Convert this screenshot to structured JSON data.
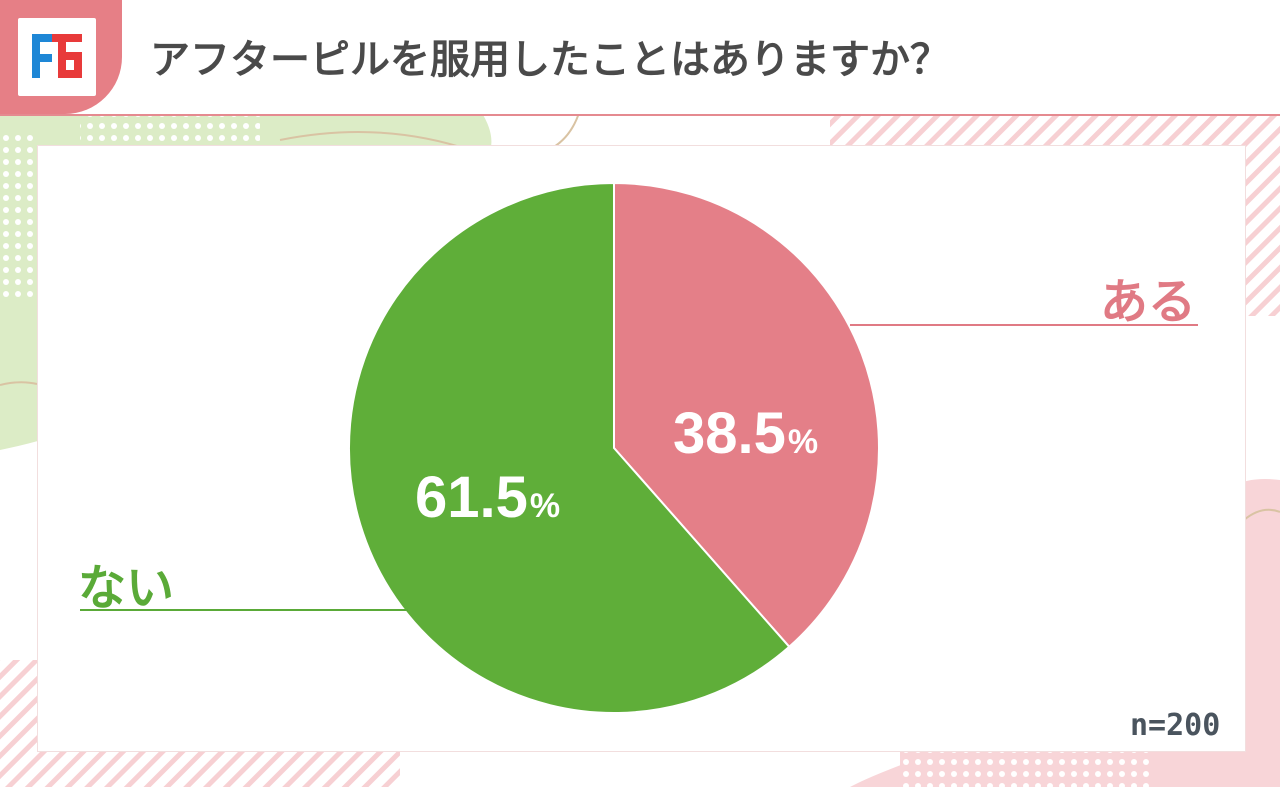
{
  "header": {
    "title": "アフターピルを服用したことはありますか？",
    "logo_icon": "ff-logo-icon"
  },
  "chart_data": {
    "type": "pie",
    "categories": [
      "ある",
      "ない"
    ],
    "values": [
      38.5,
      61.5
    ],
    "value_labels": [
      "38.5",
      "61.5"
    ],
    "unit": "%",
    "colors": [
      "#e47f88",
      "#5fae39"
    ],
    "note": "n=200"
  },
  "colors": {
    "accent": "#e67f86",
    "title_text": "#4a4a4a",
    "aru": "#e07a84",
    "nai": "#5aaa38"
  }
}
